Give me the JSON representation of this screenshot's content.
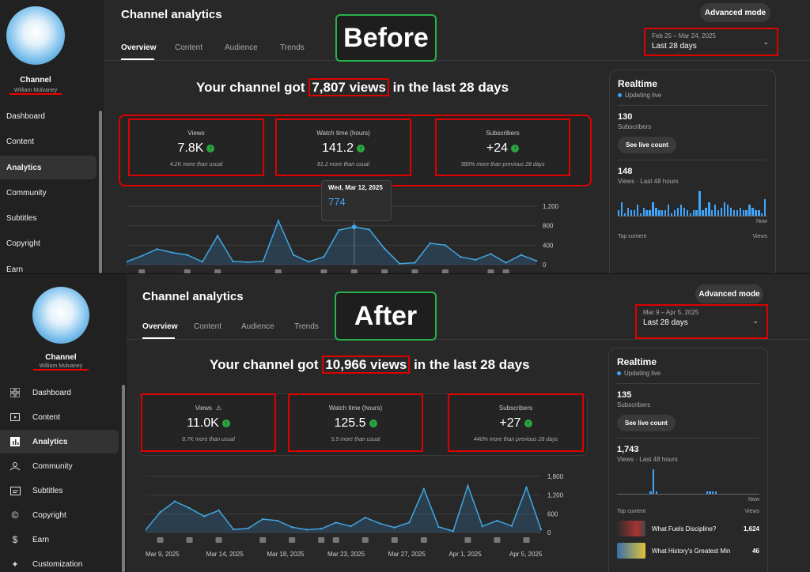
{
  "before": {
    "overlay": "Before",
    "sidebar": {
      "channel_label": "Channel",
      "channel_name": "William Mulvaney",
      "items": [
        "Dashboard",
        "Content",
        "Analytics",
        "Community",
        "Subtitles",
        "Copyright",
        "Earn"
      ],
      "active": "Analytics"
    },
    "header": {
      "title": "Channel analytics",
      "tabs": [
        "Overview",
        "Content",
        "Audience",
        "Trends"
      ],
      "advanced": "Advanced mode",
      "date_range": "Feb 25 – Mar 24, 2025",
      "period": "Last 28 days"
    },
    "headline": {
      "pre": "Your channel got",
      "views": "7,807 views",
      "post": "in the last 28 days"
    },
    "metrics": [
      {
        "label": "Views",
        "value": "7.8K",
        "note": "4.2K more than usual"
      },
      {
        "label": "Watch time (hours)",
        "value": "141.2",
        "note": "81.2 more than usual"
      },
      {
        "label": "Subscribers",
        "value": "+24",
        "note": "380% more than previous 28 days"
      }
    ],
    "tooltip": {
      "date": "Wed, Mar 12, 2025",
      "value": "774"
    },
    "realtime": {
      "title": "Realtime",
      "status": "Updating live",
      "subs": "130",
      "subs_label": "Subscribers",
      "live_btn": "See live count",
      "views": "148",
      "views_label": "Views · Last 48 hours",
      "now": "Now",
      "top_content": "Top content",
      "views_col": "Views",
      "bars": [
        2,
        5,
        1,
        3,
        2,
        2,
        4,
        1,
        3,
        2,
        2,
        5,
        3,
        2,
        2,
        2,
        4,
        1,
        2,
        3,
        4,
        3,
        2,
        1,
        2,
        2,
        9,
        2,
        3,
        5,
        2,
        4,
        2,
        3,
        5,
        4,
        3,
        2,
        2,
        3,
        2,
        2,
        4,
        3,
        2,
        2,
        1,
        6
      ]
    },
    "chart_data": {
      "type": "area",
      "ylim": [
        0,
        1200
      ],
      "yticks": [
        "1,200",
        "800",
        "400",
        "0"
      ],
      "values": [
        60,
        180,
        320,
        250,
        200,
        60,
        590,
        70,
        50,
        70,
        900,
        200,
        60,
        160,
        710,
        774,
        720,
        330,
        20,
        40,
        440,
        400,
        160,
        100,
        220,
        40,
        200,
        80
      ]
    }
  },
  "after": {
    "overlay": "After",
    "sidebar": {
      "channel_label": "Channel",
      "channel_name": "William Mulvaney",
      "items": [
        "Dashboard",
        "Content",
        "Analytics",
        "Community",
        "Subtitles",
        "Copyright",
        "Earn",
        "Customization"
      ],
      "icons": [
        "dashboard-icon",
        "content-icon",
        "analytics-icon",
        "community-icon",
        "subtitles-icon",
        "copyright-icon",
        "earn-icon",
        "customization-icon"
      ],
      "active": "Analytics"
    },
    "header": {
      "title": "Channel analytics",
      "tabs": [
        "Overview",
        "Content",
        "Audience",
        "Trends"
      ],
      "advanced": "Advanced mode",
      "date_range": "Mar 9 – Apr 5, 2025",
      "period": "Last 28 days"
    },
    "headline": {
      "pre": "Your channel got",
      "views": "10,966 views",
      "post": "in the last 28 days"
    },
    "metrics": [
      {
        "label": "Views",
        "value": "11.0K",
        "note": "8.7K more than usual"
      },
      {
        "label": "Watch time (hours)",
        "value": "125.5",
        "note": "5.5 more than usual"
      },
      {
        "label": "Subscribers",
        "value": "+27",
        "note": "440% more than previous 28 days"
      }
    ],
    "realtime": {
      "title": "Realtime",
      "status": "Updating live",
      "subs": "135",
      "subs_label": "Subscribers",
      "live_btn": "See live count",
      "views": "1,743",
      "views_label": "Views · Last 48 hours",
      "now": "Now",
      "top_content": "Top content",
      "views_col": "Views",
      "video1": "What Fuels Discipline?",
      "video1_views": "1,624",
      "video2": "What History's Greatest Min",
      "video2_views": "46",
      "bars": [
        0,
        0,
        0,
        0,
        0,
        0,
        0,
        0,
        0,
        0,
        0,
        1,
        10,
        1,
        0,
        0,
        0,
        0,
        0,
        0,
        0,
        0,
        0,
        0,
        0,
        0,
        0,
        0,
        0,
        0,
        1,
        1,
        1,
        1,
        0,
        0,
        0,
        0,
        0,
        0,
        0,
        0,
        0,
        0,
        0,
        0,
        0,
        0
      ]
    },
    "chart_data": {
      "type": "area",
      "ylim": [
        0,
        1800
      ],
      "yticks": [
        "1,800",
        "1,200",
        "600",
        "0"
      ],
      "x_labels": [
        "Mar 9, 2025",
        "Mar 14, 2025",
        "Mar 18, 2025",
        "Mar 23, 2025",
        "Mar 27, 2025",
        "Apr 1, 2025",
        "Apr 5, 2025"
      ],
      "values": [
        80,
        650,
        1000,
        780,
        520,
        710,
        100,
        130,
        430,
        380,
        170,
        90,
        120,
        320,
        200,
        480,
        290,
        160,
        320,
        1400,
        180,
        40,
        1500,
        200,
        380,
        210,
        1450,
        100
      ]
    }
  }
}
